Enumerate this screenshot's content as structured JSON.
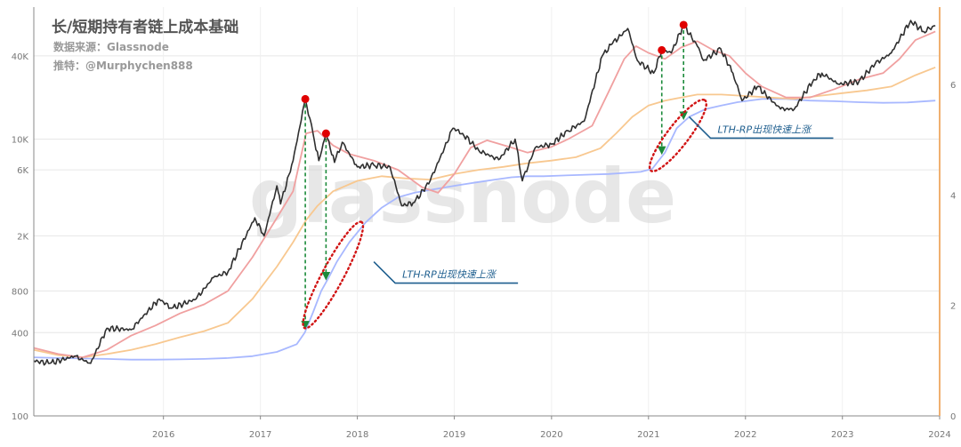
{
  "title": "长/短期持有者链上成本基础",
  "source_line": "数据来源：Glassnode",
  "author_line": "推特：@Murphychen888",
  "watermark": "glassnode",
  "annotations": [
    {
      "text": "LTH-RP出现快速上涨",
      "x": "2018-09-01",
      "y": 1300
    },
    {
      "text": "LTH-RP出现快速上涨",
      "x": "2021-12-01",
      "y": 14500
    }
  ],
  "peak_markers": [
    {
      "x": "2017-12-17",
      "y": 19500
    },
    {
      "x": "2018-03-05",
      "y": 11000
    },
    {
      "x": "2021-08-20",
      "y": 44000
    },
    {
      "x": "2021-11-10",
      "y": 67000
    }
  ],
  "colors": {
    "price": "#2f2f2f",
    "sth": "#f0a0a0",
    "mid": "#f8c890",
    "lth": "#a8b8ff",
    "marker": "#e00000",
    "arrow": "#1b8a3a",
    "ellipse": "#d11414",
    "callout": "#1f5f8f",
    "right_axis": "#f0b070",
    "grid": "#e6e6e6",
    "axis_text": "#777777"
  },
  "chart_data": {
    "type": "line",
    "y_scale": "log",
    "ylim": [
      100,
      90000
    ],
    "y_ticks": [
      "100",
      "400",
      "800",
      "2K",
      "6K",
      "10K",
      "40K"
    ],
    "y_tick_values": [
      100,
      400,
      800,
      2000,
      6000,
      10000,
      40000
    ],
    "y2_ticks": [
      "0",
      "2",
      "4",
      "6"
    ],
    "y2_tick_values": [
      0,
      2,
      4,
      6
    ],
    "y2lim": [
      0,
      7.4
    ],
    "x_range": [
      "2015-03-01",
      "2024-07-01"
    ],
    "x_ticks": [
      "2016",
      "2017",
      "2018",
      "2019",
      "2020",
      "2021",
      "2022",
      "2023",
      "2024"
    ],
    "series": [
      {
        "key": "price",
        "x": [
          "2015-03-01",
          "2015-05-01",
          "2015-08-01",
          "2015-10-01",
          "2015-12-01",
          "2016-03-01",
          "2016-06-15",
          "2016-08-01",
          "2016-11-01",
          "2017-01-05",
          "2017-03-01",
          "2017-06-10",
          "2017-07-15",
          "2017-09-01",
          "2017-09-15",
          "2017-11-01",
          "2017-12-17",
          "2018-01-15",
          "2018-02-06",
          "2018-03-05",
          "2018-04-06",
          "2018-05-05",
          "2018-07-01",
          "2018-09-01",
          "2018-11-01",
          "2018-12-15",
          "2019-02-01",
          "2019-04-01",
          "2019-06-26",
          "2019-08-01",
          "2019-10-01",
          "2019-12-15",
          "2020-02-15",
          "2020-03-13",
          "2020-05-01",
          "2020-07-01",
          "2020-09-01",
          "2020-11-01",
          "2021-01-08",
          "2021-02-15",
          "2021-04-14",
          "2021-05-20",
          "2021-07-20",
          "2021-08-20",
          "2021-09-25",
          "2021-11-10",
          "2022-01-01",
          "2022-01-24",
          "2022-03-30",
          "2022-05-15",
          "2022-06-18",
          "2022-08-15",
          "2022-11-10",
          "2023-01-01",
          "2023-03-15",
          "2023-04-15",
          "2023-06-15",
          "2023-09-01",
          "2023-11-01",
          "2024-01-01",
          "2024-03-14",
          "2024-05-01",
          "2024-06-15"
        ],
        "values": [
          250,
          240,
          270,
          240,
          430,
          420,
          700,
          600,
          700,
          1000,
          1100,
          2700,
          2000,
          4600,
          3400,
          7000,
          19500,
          11000,
          7000,
          11000,
          6800,
          9500,
          6300,
          6500,
          6300,
          3300,
          3500,
          5000,
          12000,
          11000,
          8300,
          7100,
          10000,
          5000,
          8700,
          9200,
          11500,
          13500,
          40000,
          49000,
          63000,
          37000,
          30000,
          44000,
          42000,
          67000,
          47000,
          37000,
          45000,
          30000,
          19000,
          24000,
          16500,
          16500,
          27000,
          30000,
          25000,
          26000,
          35000,
          42000,
          72000,
          60000,
          66000
        ]
      },
      {
        "key": "sth",
        "x": [
          "2015-03-01",
          "2015-06-01",
          "2015-09-01",
          "2015-12-01",
          "2016-03-01",
          "2016-06-01",
          "2016-09-01",
          "2016-12-01",
          "2017-03-01",
          "2017-06-01",
          "2017-09-01",
          "2017-11-01",
          "2017-12-20",
          "2018-02-01",
          "2018-04-01",
          "2018-06-01",
          "2018-09-01",
          "2018-12-01",
          "2019-03-01",
          "2019-05-01",
          "2019-07-01",
          "2019-09-01",
          "2019-11-01",
          "2020-02-01",
          "2020-04-01",
          "2020-07-01",
          "2020-09-01",
          "2020-12-01",
          "2021-02-01",
          "2021-04-01",
          "2021-05-15",
          "2021-07-01",
          "2021-09-01",
          "2021-11-01",
          "2022-01-01",
          "2022-03-01",
          "2022-05-01",
          "2022-07-01",
          "2022-09-01",
          "2022-12-01",
          "2023-03-01",
          "2023-06-01",
          "2023-09-01",
          "2023-12-01",
          "2024-02-01",
          "2024-04-01",
          "2024-06-15"
        ],
        "values": [
          310,
          280,
          265,
          300,
          380,
          450,
          550,
          640,
          800,
          1400,
          2700,
          4200,
          11000,
          11500,
          9000,
          7800,
          7000,
          6000,
          4500,
          4100,
          5600,
          8700,
          9800,
          8700,
          8000,
          8800,
          10000,
          12500,
          22000,
          38000,
          47000,
          42000,
          38000,
          46000,
          51000,
          44000,
          40000,
          30000,
          24000,
          20000,
          20000,
          23000,
          27000,
          30000,
          38000,
          52000,
          60000
        ]
      },
      {
        "key": "mid",
        "x": [
          "2015-03-01",
          "2015-06-01",
          "2015-09-01",
          "2015-12-01",
          "2016-03-01",
          "2016-06-01",
          "2016-09-01",
          "2016-12-01",
          "2017-03-01",
          "2017-06-01",
          "2017-09-01",
          "2017-11-01",
          "2017-12-20",
          "2018-02-01",
          "2018-04-01",
          "2018-07-01",
          "2018-10-01",
          "2019-01-01",
          "2019-04-01",
          "2019-07-01",
          "2019-10-01",
          "2020-01-01",
          "2020-04-01",
          "2020-07-01",
          "2020-10-01",
          "2021-01-01",
          "2021-03-01",
          "2021-05-01",
          "2021-07-01",
          "2021-09-01",
          "2021-11-01",
          "2022-01-01",
          "2022-04-01",
          "2022-07-01",
          "2022-10-01",
          "2023-01-01",
          "2023-04-01",
          "2023-07-01",
          "2023-10-01",
          "2024-01-01",
          "2024-04-01",
          "2024-06-15"
        ],
        "values": [
          300,
          275,
          265,
          280,
          300,
          330,
          370,
          410,
          470,
          700,
          1200,
          1800,
          2600,
          3300,
          4200,
          5000,
          5400,
          5200,
          5100,
          5600,
          6000,
          6300,
          6700,
          7000,
          7400,
          8600,
          11000,
          14500,
          17500,
          19000,
          20000,
          21000,
          21000,
          20500,
          20000,
          19500,
          20500,
          21500,
          22500,
          24000,
          29000,
          33000
        ]
      },
      {
        "key": "lth",
        "x": [
          "2015-03-01",
          "2015-06-01",
          "2015-09-01",
          "2015-12-01",
          "2016-03-01",
          "2016-06-01",
          "2016-09-01",
          "2016-12-01",
          "2017-03-01",
          "2017-06-01",
          "2017-09-01",
          "2017-11-15",
          "2017-12-15",
          "2018-01-15",
          "2018-02-15",
          "2018-03-15",
          "2018-04-15",
          "2018-06-01",
          "2018-08-01",
          "2018-10-01",
          "2018-12-01",
          "2019-02-01",
          "2019-04-01",
          "2019-06-01",
          "2019-08-01",
          "2019-10-01",
          "2019-12-01",
          "2020-02-01",
          "2020-04-01",
          "2020-06-01",
          "2020-08-01",
          "2020-10-01",
          "2020-12-01",
          "2021-02-01",
          "2021-04-01",
          "2021-06-01",
          "2021-07-15",
          "2021-09-01",
          "2021-10-15",
          "2021-12-01",
          "2022-02-01",
          "2022-04-01",
          "2022-06-01",
          "2022-09-01",
          "2022-12-01",
          "2023-03-01",
          "2023-06-01",
          "2023-09-01",
          "2023-12-01",
          "2024-03-01",
          "2024-06-15"
        ],
        "values": [
          265,
          262,
          260,
          258,
          255,
          255,
          256,
          258,
          262,
          270,
          290,
          330,
          400,
          560,
          800,
          1000,
          1300,
          1800,
          2500,
          3200,
          3800,
          4100,
          4300,
          4500,
          4700,
          4900,
          5100,
          5300,
          5400,
          5400,
          5450,
          5500,
          5550,
          5600,
          5700,
          5800,
          6100,
          8000,
          12000,
          14500,
          16500,
          17500,
          18500,
          19500,
          19500,
          19000,
          18800,
          18500,
          18300,
          18400,
          19000
        ]
      }
    ]
  }
}
